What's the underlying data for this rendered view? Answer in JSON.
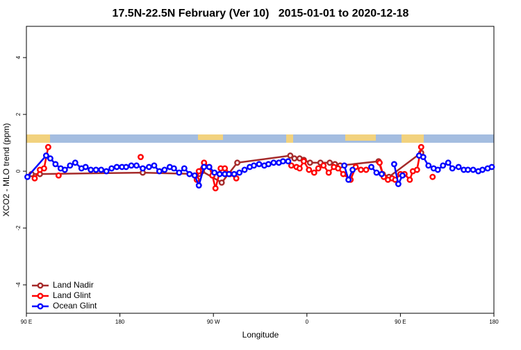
{
  "chart_data": {
    "type": "line",
    "title": "17.5N-22.5N February (Ver 10)   2015-01-01 to 2020-12-18",
    "x_label": "Longitude",
    "y_label": "XCO2 - MLO trend (ppm)",
    "xlim": [
      90,
      540
    ],
    "ylim": [
      -5,
      5.1
    ],
    "xticks": [
      {
        "value": 90,
        "label": "90 E"
      },
      180,
      {
        "value": 270,
        "label": "90 W"
      },
      {
        "value": 360,
        "label": "0"
      },
      {
        "value": 450,
        "label": "90 E"
      },
      {
        "value": 540,
        "label": "180"
      }
    ],
    "yticks": [
      -4,
      -2,
      0,
      2,
      4
    ],
    "grid": false,
    "legend": "bottomleft",
    "series": [
      {
        "name": "Land Nadir",
        "color": "#a52a2a",
        "x": [
          95,
          103,
          202,
          256,
          259,
          278,
          293,
          344,
          348,
          353,
          357,
          363,
          373,
          382,
          387,
          392,
          429,
          433,
          439,
          470
        ],
        "values": [
          -0.1,
          -0.1,
          -0.05,
          -0.1,
          0,
          -0.4,
          0.3,
          0.55,
          0.45,
          0.45,
          0.4,
          0.3,
          0.3,
          0.3,
          0.25,
          0.2,
          0.35,
          -0.1,
          -0.2,
          0.65
        ]
      },
      {
        "name": "Land Glint",
        "color": "#ff0000",
        "x": [
          98,
          103,
          107,
          111,
          116,
          121,
          160,
          200,
          230,
          254,
          256,
          261,
          266,
          269,
          272,
          277,
          281,
          286,
          292,
          320,
          345,
          350,
          353,
          357,
          362,
          367,
          371,
          376,
          381,
          386,
          390,
          395,
          402,
          407,
          412,
          417,
          425,
          430,
          434,
          438,
          442,
          445,
          450,
          454,
          459,
          462,
          466,
          470,
          476,
          481
        ],
        "values": [
          -0.25,
          0.05,
          0.1,
          0.85,
          null,
          -0.15,
          null,
          0.5,
          null,
          -0.3,
          0,
          0.3,
          0.15,
          -0.15,
          -0.6,
          0.1,
          0.1,
          -0.1,
          -0.25,
          null,
          0.2,
          0.15,
          0.1,
          0.35,
          0.05,
          -0.05,
          0.1,
          0.2,
          -0.05,
          0.15,
          0.1,
          -0.1,
          -0.3,
          0.15,
          0.05,
          0.05,
          null,
          0.3,
          -0.2,
          -0.3,
          -0.25,
          -0.3,
          -0.1,
          -0.1,
          -0.3,
          0,
          0.05,
          0.85,
          null,
          -0.2
        ]
      },
      {
        "name": "Ocean Glint",
        "color": "#0000ff",
        "x": [
          91,
          109,
          113,
          118,
          123,
          127,
          132,
          137,
          143,
          147,
          152,
          157,
          162,
          167,
          172,
          177,
          182,
          186,
          191,
          196,
          202,
          208,
          213,
          218,
          223,
          228,
          232,
          237,
          242,
          247,
          252,
          256,
          261,
          266,
          271,
          276,
          281,
          285,
          290,
          295,
          300,
          305,
          309,
          314,
          319,
          323,
          328,
          333,
          337,
          342,
          370,
          396,
          400,
          404,
          414,
          422,
          427,
          432,
          438,
          444,
          448,
          452,
          460,
          468,
          472,
          477,
          482,
          486,
          491,
          496,
          500,
          506,
          511,
          515,
          520,
          525,
          529,
          534,
          538
        ],
        "values": [
          -0.2,
          0.55,
          0.45,
          0.25,
          0.1,
          0.05,
          0.2,
          0.3,
          0.1,
          0.15,
          0.05,
          0.05,
          0.05,
          0,
          0.1,
          0.15,
          0.15,
          0.15,
          0.2,
          0.2,
          0.1,
          0.15,
          0.2,
          0,
          0.05,
          0.15,
          0.1,
          -0.05,
          0.1,
          -0.1,
          -0.15,
          -0.5,
          0.15,
          0.15,
          -0.05,
          -0.1,
          -0.1,
          -0.1,
          -0.1,
          -0.05,
          0.05,
          0.15,
          0.2,
          0.25,
          0.2,
          0.25,
          0.3,
          0.3,
          0.35,
          0.35,
          null,
          0.2,
          -0.3,
          0.05,
          null,
          0.15,
          -0.05,
          -0.1,
          null,
          0.25,
          -0.45,
          -0.15,
          null,
          0.55,
          0.5,
          0.2,
          0.1,
          0.05,
          0.2,
          0.3,
          0.1,
          0.15,
          0.05,
          0.05,
          0.05,
          0,
          0.05,
          0.1,
          0.15
        ]
      }
    ]
  }
}
